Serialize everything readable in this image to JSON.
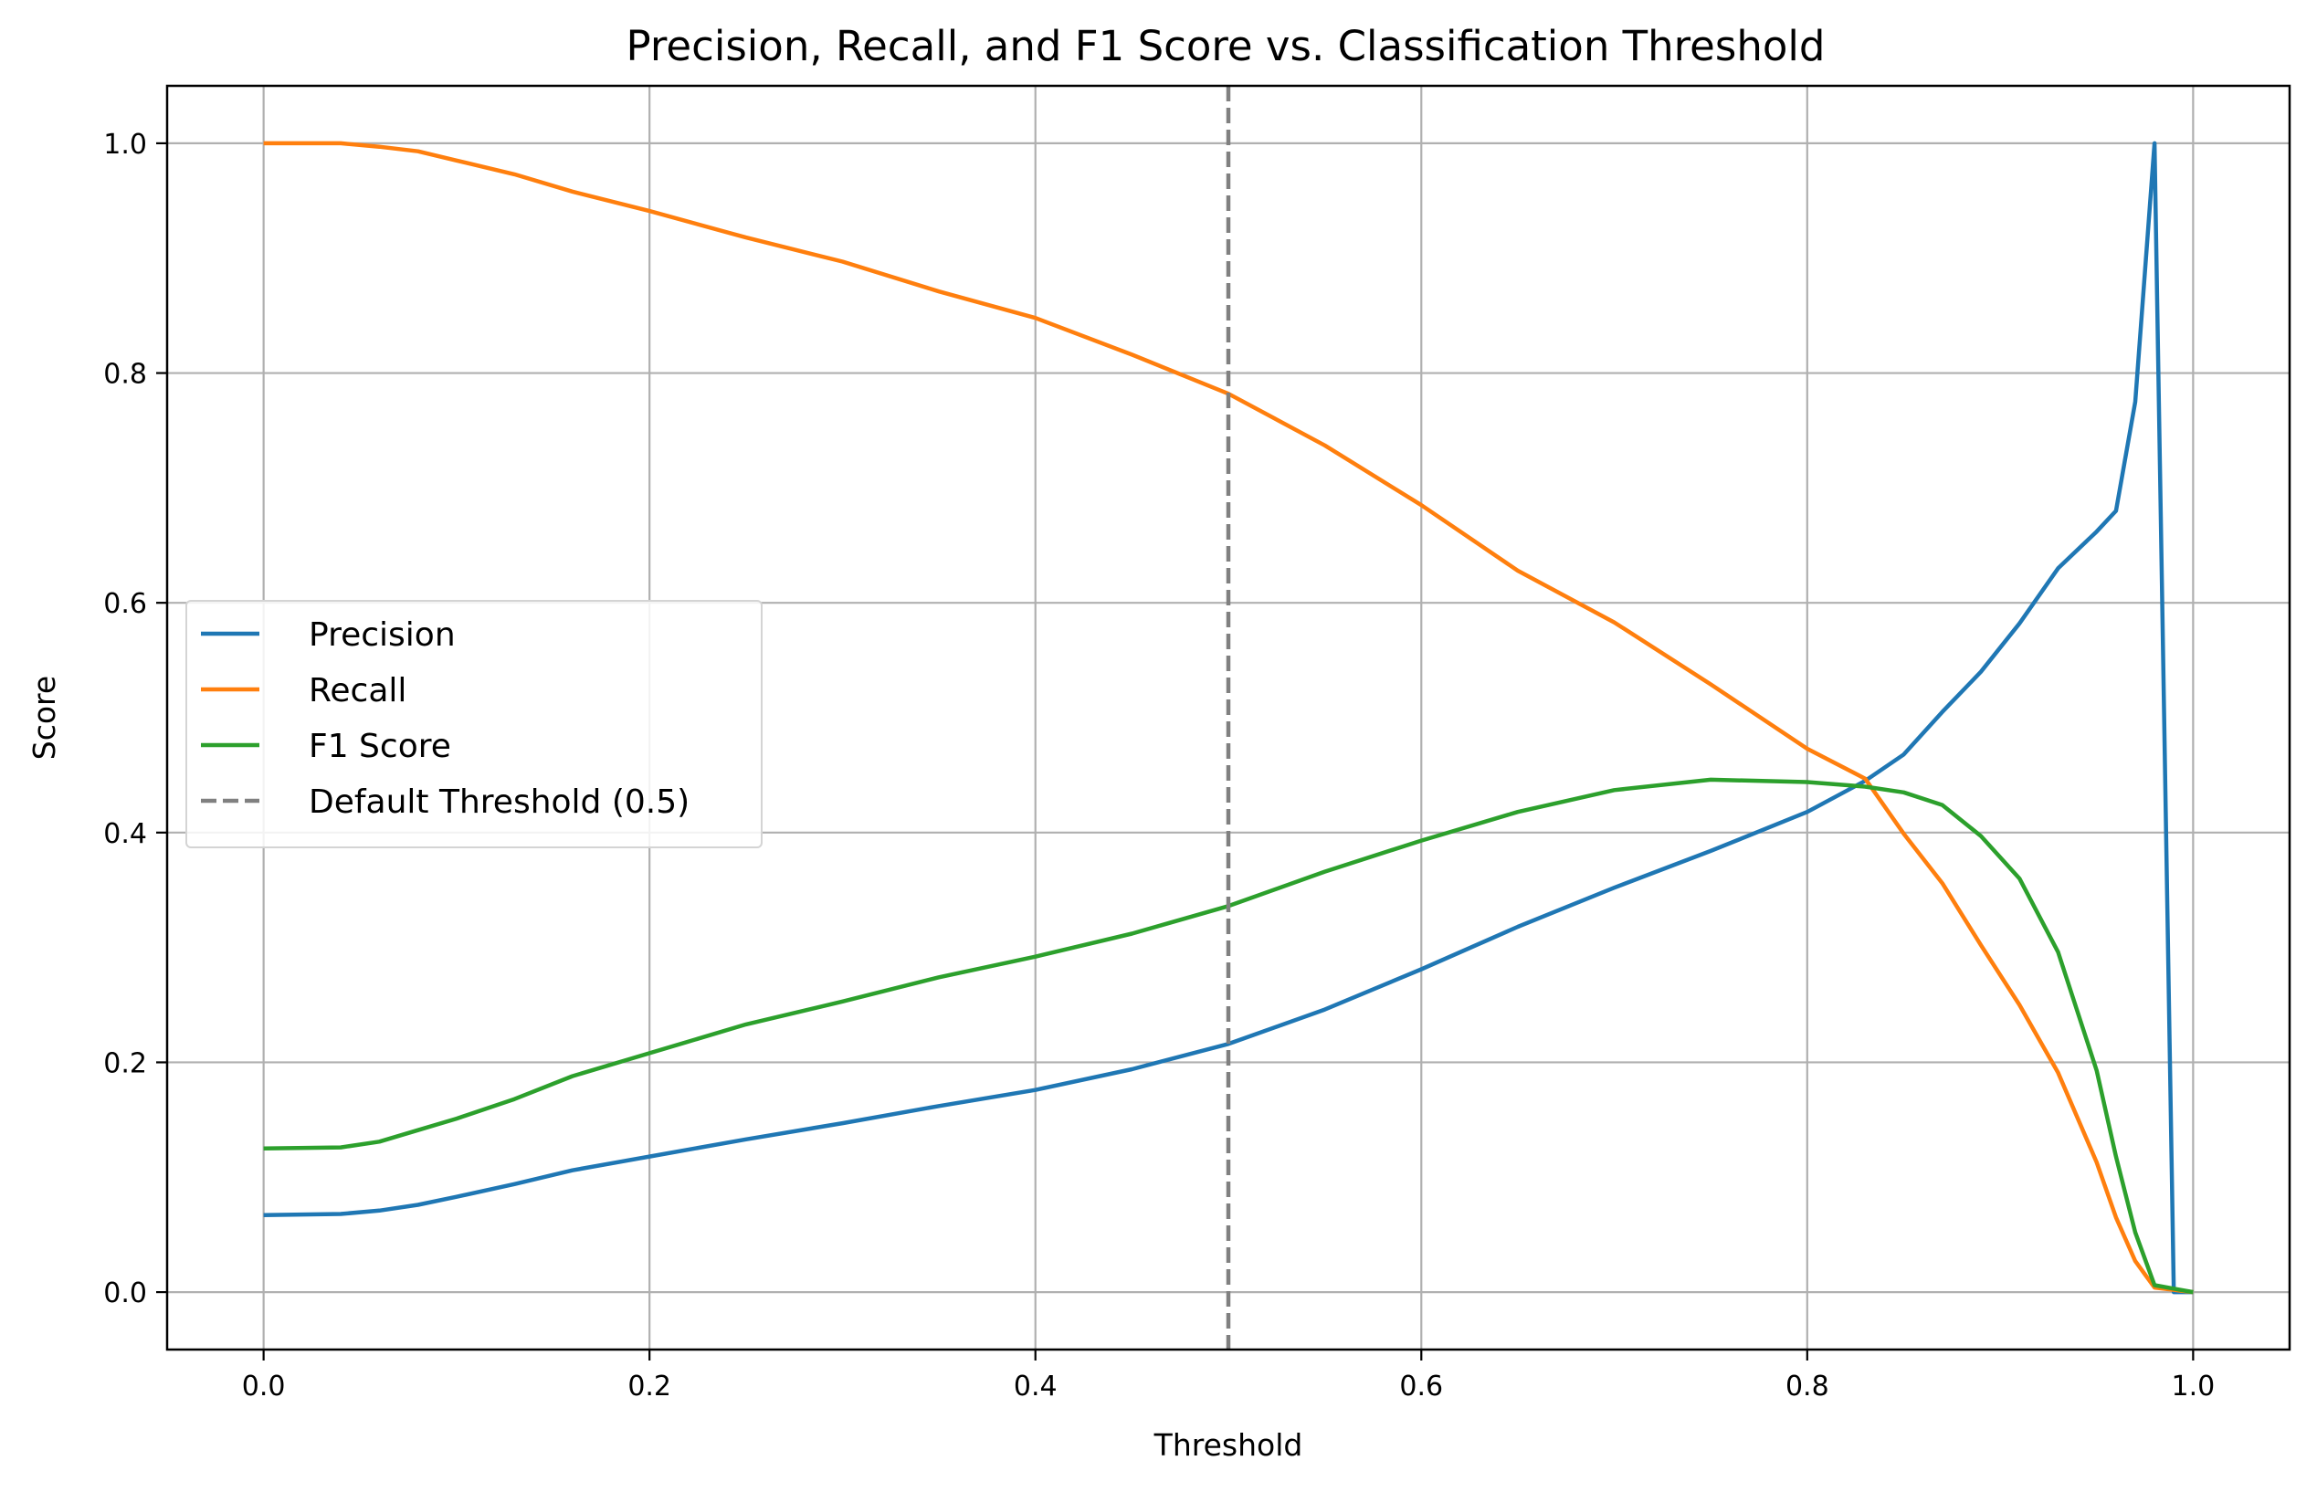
{
  "chart_data": {
    "type": "line",
    "title": "Precision, Recall, and F1 Score vs. Classification Threshold",
    "xlabel": "Threshold",
    "ylabel": "Score",
    "xlim": [
      -0.05,
      1.05
    ],
    "ylim": [
      -0.05,
      1.05
    ],
    "xticks": [
      0.0,
      0.2,
      0.4,
      0.6,
      0.8,
      1.0
    ],
    "xtick_labels": [
      "0.0",
      "0.2",
      "0.4",
      "0.6",
      "0.8",
      "1.0"
    ],
    "yticks": [
      0.0,
      0.2,
      0.4,
      0.6,
      0.8,
      1.0
    ],
    "ytick_labels": [
      "0.0",
      "0.2",
      "0.4",
      "0.6",
      "0.8",
      "1.0"
    ],
    "grid": true,
    "legend_position": "center-left",
    "series": [
      {
        "name": "Precision",
        "color": "#1f77b4",
        "x": [
          0.0,
          0.04,
          0.06,
          0.08,
          0.1,
          0.13,
          0.16,
          0.2,
          0.25,
          0.3,
          0.35,
          0.4,
          0.45,
          0.5,
          0.55,
          0.6,
          0.65,
          0.7,
          0.75,
          0.8,
          0.83,
          0.85,
          0.87,
          0.89,
          0.91,
          0.93,
          0.95,
          0.96,
          0.97,
          0.98,
          0.99,
          1.0
        ],
        "y": [
          0.067,
          0.068,
          0.071,
          0.076,
          0.083,
          0.094,
          0.106,
          0.118,
          0.133,
          0.147,
          0.162,
          0.176,
          0.194,
          0.216,
          0.246,
          0.281,
          0.318,
          0.352,
          0.384,
          0.418,
          0.445,
          0.468,
          0.505,
          0.54,
          0.582,
          0.63,
          0.662,
          0.68,
          0.775,
          1.0,
          0.0,
          0.0
        ]
      },
      {
        "name": "Recall",
        "color": "#ff7f0e",
        "x": [
          0.0,
          0.04,
          0.06,
          0.08,
          0.1,
          0.13,
          0.16,
          0.2,
          0.25,
          0.3,
          0.35,
          0.4,
          0.45,
          0.5,
          0.55,
          0.6,
          0.65,
          0.7,
          0.75,
          0.8,
          0.83,
          0.85,
          0.87,
          0.89,
          0.91,
          0.93,
          0.95,
          0.96,
          0.97,
          0.98,
          0.99,
          1.0
        ],
        "y": [
          1.0,
          1.0,
          0.997,
          0.993,
          0.985,
          0.973,
          0.958,
          0.941,
          0.918,
          0.897,
          0.871,
          0.848,
          0.816,
          0.782,
          0.737,
          0.685,
          0.628,
          0.583,
          0.529,
          0.473,
          0.447,
          0.399,
          0.356,
          0.302,
          0.25,
          0.191,
          0.113,
          0.065,
          0.027,
          0.004,
          0.002,
          0.0
        ]
      },
      {
        "name": "F1 Score",
        "color": "#2ca02c",
        "x": [
          0.0,
          0.04,
          0.06,
          0.08,
          0.1,
          0.13,
          0.16,
          0.2,
          0.25,
          0.3,
          0.35,
          0.4,
          0.45,
          0.5,
          0.55,
          0.6,
          0.65,
          0.7,
          0.75,
          0.8,
          0.83,
          0.85,
          0.87,
          0.89,
          0.91,
          0.93,
          0.95,
          0.96,
          0.97,
          0.98,
          0.99,
          1.0
        ],
        "y": [
          0.125,
          0.126,
          0.131,
          0.141,
          0.151,
          0.168,
          0.188,
          0.208,
          0.233,
          0.253,
          0.274,
          0.292,
          0.312,
          0.336,
          0.366,
          0.393,
          0.418,
          0.437,
          0.446,
          0.444,
          0.44,
          0.435,
          0.424,
          0.397,
          0.36,
          0.296,
          0.193,
          0.118,
          0.052,
          0.006,
          0.003,
          0.0
        ]
      }
    ],
    "reference_lines": [
      {
        "name": "Default Threshold (0.5)",
        "x": 0.5,
        "color": "#808080",
        "style": "dashed"
      }
    ]
  }
}
